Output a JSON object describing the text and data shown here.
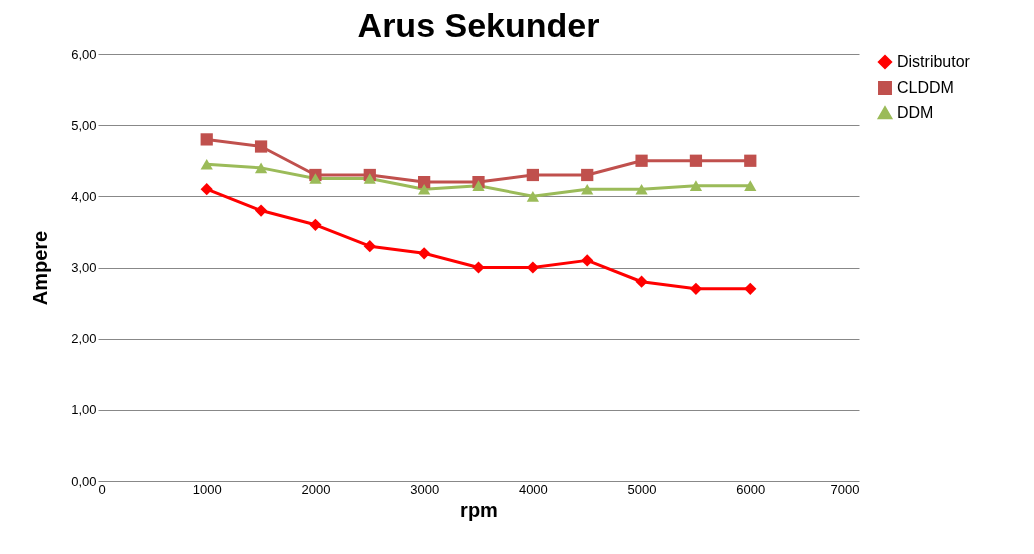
{
  "chart_data": {
    "type": "line",
    "title": "Arus Sekunder",
    "xlabel": "rpm",
    "ylabel": "Ampere",
    "x": [
      1000,
      1500,
      2000,
      2500,
      3000,
      3500,
      4000,
      4500,
      5000,
      5500,
      6000
    ],
    "xlim": [
      0,
      7000
    ],
    "xticks": [
      0,
      1000,
      2000,
      3000,
      4000,
      5000,
      6000,
      7000
    ],
    "ylim": [
      0,
      6
    ],
    "yticks": [
      {
        "value": 0,
        "label": "0,00"
      },
      {
        "value": 1,
        "label": "1,00"
      },
      {
        "value": 2,
        "label": "2,00"
      },
      {
        "value": 3,
        "label": "3,00"
      },
      {
        "value": 4,
        "label": "4,00"
      },
      {
        "value": 5,
        "label": "5,00"
      },
      {
        "value": 6,
        "label": "6,00"
      }
    ],
    "grid": "y",
    "legend": "right",
    "line_style": "solid",
    "series": [
      {
        "name": "Distributor",
        "color": "#ff0000",
        "marker": "diamond",
        "values": [
          4.1,
          3.8,
          3.6,
          3.3,
          3.2,
          3.0,
          3.0,
          3.1,
          2.8,
          2.7,
          2.7
        ]
      },
      {
        "name": "CLDDM",
        "color": "#c0504d",
        "marker": "square",
        "values": [
          4.8,
          4.7,
          4.3,
          4.3,
          4.2,
          4.2,
          4.3,
          4.3,
          4.5,
          4.5,
          4.5
        ]
      },
      {
        "name": "DDM",
        "color": "#9bbb59",
        "marker": "triangle",
        "values": [
          4.45,
          4.4,
          4.25,
          4.25,
          4.1,
          4.15,
          4.0,
          4.1,
          4.1,
          4.15,
          4.15
        ]
      }
    ]
  }
}
